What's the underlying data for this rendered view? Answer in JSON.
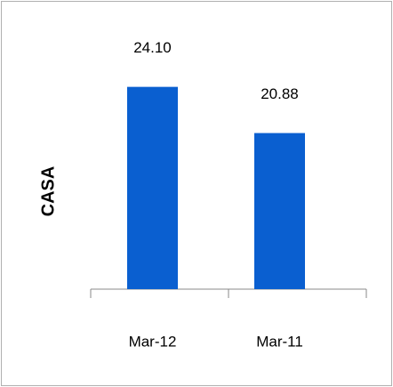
{
  "chart_data": {
    "type": "bar",
    "y_label": "CASA",
    "categories": [
      "Mar-12",
      "Mar-11"
    ],
    "values": [
      24.1,
      20.88
    ],
    "value_labels": [
      "24.10",
      "20.88"
    ],
    "color": "#0a5fd0",
    "ylim": [
      10,
      26
    ]
  }
}
